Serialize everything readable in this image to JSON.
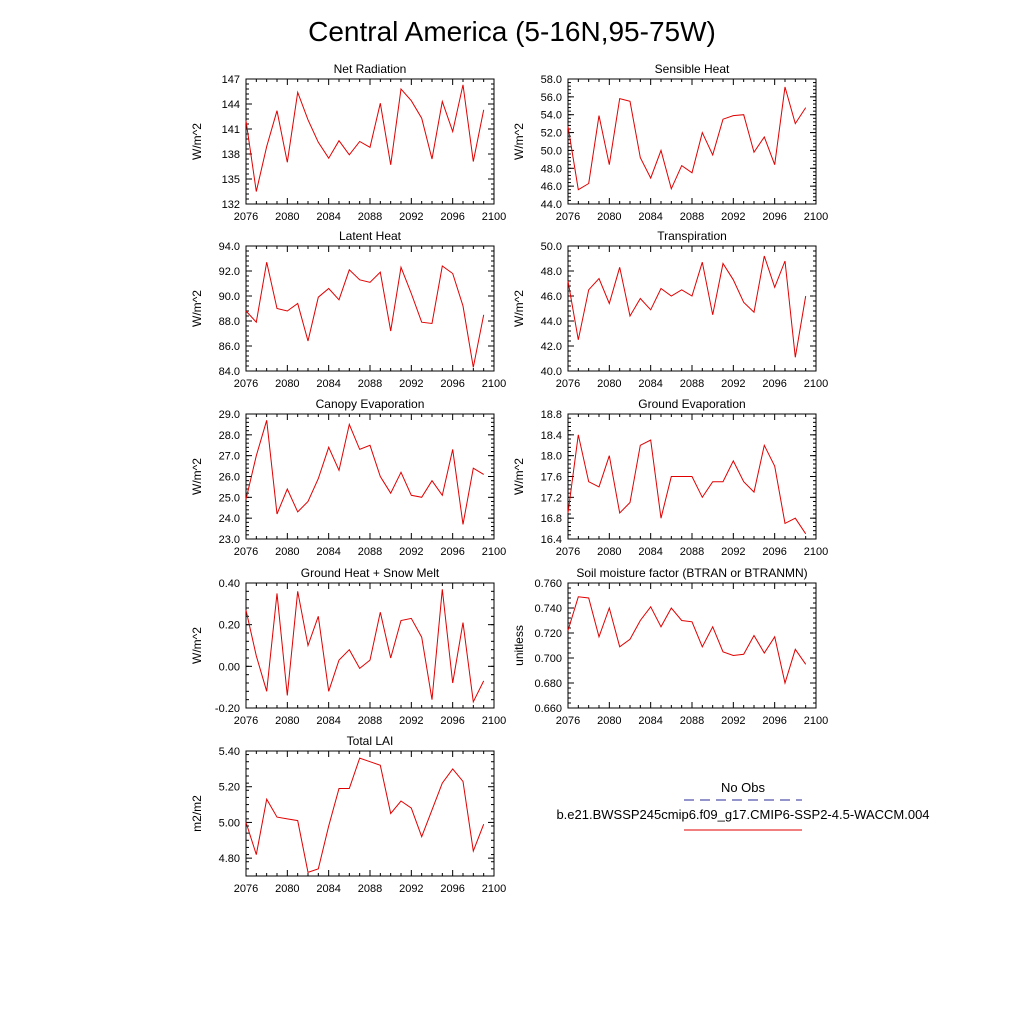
{
  "title": "Central America (5-16N,95-75W)",
  "colors": {
    "model_line": "#e00000",
    "obs_line": "#2a2a9a",
    "axis": "#000000"
  },
  "legend": {
    "obs_label": "No Obs",
    "model_label": "b.e21.BWSSP245cmip6.f09_g17.CMIP6-SSP2-4.5-WACCM.004"
  },
  "chart_data": [
    {
      "type": "line",
      "title": "Net Radiation",
      "ylabel": "W/m^2",
      "xlim": [
        2076,
        2100
      ],
      "xticks": [
        "2076",
        "2080",
        "2084",
        "2088",
        "2092",
        "2096",
        "2100"
      ],
      "ylim": [
        132,
        147
      ],
      "yticks": [
        "132",
        "135",
        "138",
        "141",
        "144",
        "147"
      ],
      "x": [
        2076,
        2077,
        2078,
        2079,
        2080,
        2081,
        2082,
        2083,
        2084,
        2085,
        2086,
        2087,
        2088,
        2089,
        2090,
        2091,
        2092,
        2093,
        2094,
        2095,
        2096,
        2097,
        2098,
        2099
      ],
      "values": [
        142.0,
        133.5,
        138.9,
        143.2,
        137.0,
        145.4,
        142.1,
        139.4,
        137.5,
        139.6,
        137.9,
        139.5,
        138.8,
        144.1,
        136.7,
        145.8,
        144.4,
        142.3,
        137.4,
        144.3,
        140.7,
        146.3,
        137.1,
        143.3
      ]
    },
    {
      "type": "line",
      "title": "Sensible Heat",
      "ylabel": "W/m^2",
      "xlim": [
        2076,
        2100
      ],
      "xticks": [
        "2076",
        "2080",
        "2084",
        "2088",
        "2092",
        "2096",
        "2100"
      ],
      "ylim": [
        44.0,
        58.0
      ],
      "yticks": [
        "44.0",
        "46.0",
        "48.0",
        "50.0",
        "52.0",
        "54.0",
        "56.0",
        "58.0"
      ],
      "x": [
        2076,
        2077,
        2078,
        2079,
        2080,
        2081,
        2082,
        2083,
        2084,
        2085,
        2086,
        2087,
        2088,
        2089,
        2090,
        2091,
        2092,
        2093,
        2094,
        2095,
        2096,
        2097,
        2098,
        2099
      ],
      "values": [
        52.7,
        45.6,
        46.3,
        53.9,
        48.4,
        55.8,
        55.5,
        49.2,
        46.9,
        50.0,
        45.7,
        48.3,
        47.5,
        52.0,
        49.5,
        53.5,
        53.9,
        54.0,
        49.8,
        51.5,
        48.4,
        57.1,
        53.0,
        54.8
      ]
    },
    {
      "type": "line",
      "title": "Latent Heat",
      "ylabel": "W/m^2",
      "xlim": [
        2076,
        2100
      ],
      "xticks": [
        "2076",
        "2080",
        "2084",
        "2088",
        "2092",
        "2096",
        "2100"
      ],
      "ylim": [
        84.0,
        94.0
      ],
      "yticks": [
        "84.0",
        "86.0",
        "88.0",
        "90.0",
        "92.0",
        "94.0"
      ],
      "x": [
        2076,
        2077,
        2078,
        2079,
        2080,
        2081,
        2082,
        2083,
        2084,
        2085,
        2086,
        2087,
        2088,
        2089,
        2090,
        2091,
        2092,
        2093,
        2094,
        2095,
        2096,
        2097,
        2098,
        2099
      ],
      "values": [
        88.8,
        87.9,
        92.7,
        89.0,
        88.8,
        89.4,
        86.4,
        89.9,
        90.6,
        89.7,
        92.1,
        91.3,
        91.1,
        91.9,
        87.2,
        92.3,
        90.2,
        87.9,
        87.8,
        92.4,
        91.8,
        89.2,
        84.3,
        88.5
      ]
    },
    {
      "type": "line",
      "title": "Transpiration",
      "ylabel": "W/m^2",
      "xlim": [
        2076,
        2100
      ],
      "xticks": [
        "2076",
        "2080",
        "2084",
        "2088",
        "2092",
        "2096",
        "2100"
      ],
      "ylim": [
        40.0,
        50.0
      ],
      "yticks": [
        "40.0",
        "42.0",
        "44.0",
        "46.0",
        "48.0",
        "50.0"
      ],
      "x": [
        2076,
        2077,
        2078,
        2079,
        2080,
        2081,
        2082,
        2083,
        2084,
        2085,
        2086,
        2087,
        2088,
        2089,
        2090,
        2091,
        2092,
        2093,
        2094,
        2095,
        2096,
        2097,
        2098,
        2099
      ],
      "values": [
        47.2,
        42.5,
        46.5,
        47.4,
        45.4,
        48.3,
        44.4,
        45.8,
        44.9,
        46.6,
        46.0,
        46.5,
        46.0,
        48.7,
        44.5,
        48.6,
        47.3,
        45.5,
        44.7,
        49.2,
        46.7,
        48.8,
        41.1,
        46.0
      ]
    },
    {
      "type": "line",
      "title": "Canopy Evaporation",
      "ylabel": "W/m^2",
      "xlim": [
        2076,
        2100
      ],
      "xticks": [
        "2076",
        "2080",
        "2084",
        "2088",
        "2092",
        "2096",
        "2100"
      ],
      "ylim": [
        23.0,
        29.0
      ],
      "yticks": [
        "23.0",
        "24.0",
        "25.0",
        "26.0",
        "27.0",
        "28.0",
        "29.0"
      ],
      "x": [
        2076,
        2077,
        2078,
        2079,
        2080,
        2081,
        2082,
        2083,
        2084,
        2085,
        2086,
        2087,
        2088,
        2089,
        2090,
        2091,
        2092,
        2093,
        2094,
        2095,
        2096,
        2097,
        2098,
        2099
      ],
      "values": [
        24.9,
        27.0,
        28.7,
        24.2,
        25.4,
        24.3,
        24.8,
        25.9,
        27.4,
        26.3,
        28.5,
        27.3,
        27.5,
        26.0,
        25.2,
        26.2,
        25.1,
        25.0,
        25.8,
        25.1,
        27.3,
        23.7,
        26.4,
        26.1
      ]
    },
    {
      "type": "line",
      "title": "Ground Evaporation",
      "ylabel": "W/m^2",
      "xlim": [
        2076,
        2100
      ],
      "xticks": [
        "2076",
        "2080",
        "2084",
        "2088",
        "2092",
        "2096",
        "2100"
      ],
      "ylim": [
        16.4,
        18.8
      ],
      "yticks": [
        "16.4",
        "16.8",
        "17.2",
        "17.6",
        "18.0",
        "18.4",
        "18.8"
      ],
      "x": [
        2076,
        2077,
        2078,
        2079,
        2080,
        2081,
        2082,
        2083,
        2084,
        2085,
        2086,
        2087,
        2088,
        2089,
        2090,
        2091,
        2092,
        2093,
        2094,
        2095,
        2096,
        2097,
        2098,
        2099
      ],
      "values": [
        16.9,
        18.4,
        17.5,
        17.4,
        18.0,
        16.9,
        17.1,
        18.2,
        18.3,
        16.8,
        17.6,
        17.6,
        17.6,
        17.2,
        17.5,
        17.5,
        17.9,
        17.5,
        17.3,
        18.2,
        17.8,
        16.7,
        16.8,
        16.5
      ]
    },
    {
      "type": "line",
      "title": "Ground Heat + Snow Melt",
      "ylabel": "W/m^2",
      "xlim": [
        2076,
        2100
      ],
      "xticks": [
        "2076",
        "2080",
        "2084",
        "2088",
        "2092",
        "2096",
        "2100"
      ],
      "ylim": [
        -0.2,
        0.4
      ],
      "yticks": [
        "-0.20",
        "0.00",
        "0.20",
        "0.40"
      ],
      "x": [
        2076,
        2077,
        2078,
        2079,
        2080,
        2081,
        2082,
        2083,
        2084,
        2085,
        2086,
        2087,
        2088,
        2089,
        2090,
        2091,
        2092,
        2093,
        2094,
        2095,
        2096,
        2097,
        2098,
        2099
      ],
      "values": [
        0.27,
        0.05,
        -0.12,
        0.35,
        -0.14,
        0.36,
        0.1,
        0.24,
        -0.12,
        0.03,
        0.08,
        -0.01,
        0.03,
        0.26,
        0.04,
        0.22,
        0.23,
        0.14,
        -0.16,
        0.37,
        -0.08,
        0.21,
        -0.17,
        -0.07
      ]
    },
    {
      "type": "line",
      "title": "Soil moisture factor (BTRAN or BTRANMN)",
      "ylabel": "unitless",
      "xlim": [
        2076,
        2100
      ],
      "xticks": [
        "2076",
        "2080",
        "2084",
        "2088",
        "2092",
        "2096",
        "2100"
      ],
      "ylim": [
        0.66,
        0.76
      ],
      "yticks": [
        "0.660",
        "0.680",
        "0.700",
        "0.720",
        "0.740",
        "0.760"
      ],
      "x": [
        2076,
        2077,
        2078,
        2079,
        2080,
        2081,
        2082,
        2083,
        2084,
        2085,
        2086,
        2087,
        2088,
        2089,
        2090,
        2091,
        2092,
        2093,
        2094,
        2095,
        2096,
        2097,
        2098,
        2099
      ],
      "values": [
        0.722,
        0.749,
        0.748,
        0.717,
        0.74,
        0.709,
        0.715,
        0.73,
        0.741,
        0.725,
        0.74,
        0.73,
        0.729,
        0.709,
        0.725,
        0.705,
        0.702,
        0.703,
        0.718,
        0.704,
        0.717,
        0.68,
        0.707,
        0.695
      ]
    },
    {
      "type": "line",
      "title": "Total LAI",
      "ylabel": "m2/m2",
      "xlim": [
        2076,
        2100
      ],
      "xticks": [
        "2076",
        "2080",
        "2084",
        "2088",
        "2092",
        "2096",
        "2100"
      ],
      "ylim": [
        4.7,
        5.4
      ],
      "yticks": [
        "4.80",
        "5.00",
        "5.20",
        "5.40"
      ],
      "x": [
        2076,
        2077,
        2078,
        2079,
        2080,
        2081,
        2082,
        2083,
        2084,
        2085,
        2086,
        2087,
        2088,
        2089,
        2090,
        2091,
        2092,
        2093,
        2094,
        2095,
        2096,
        2097,
        2098,
        2099
      ],
      "values": [
        5.0,
        4.82,
        5.13,
        5.03,
        5.02,
        5.01,
        4.72,
        4.74,
        4.98,
        5.19,
        5.19,
        5.36,
        5.34,
        5.32,
        5.05,
        5.12,
        5.08,
        4.92,
        5.07,
        5.22,
        5.3,
        5.23,
        4.84,
        4.99
      ]
    }
  ]
}
